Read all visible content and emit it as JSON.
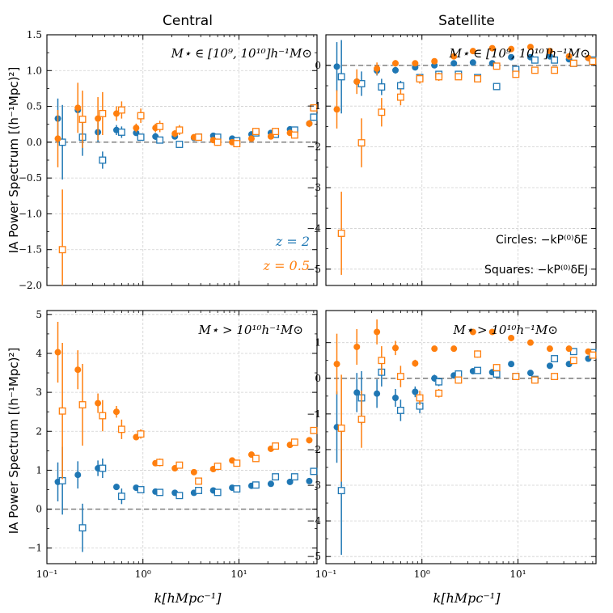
{
  "figure": {
    "col_titles": [
      "Central",
      "Satellite"
    ],
    "ylabel": "IA Power Spectrum [(h⁻¹Mpc)²]",
    "xlabel": "k[hMpc⁻¹]",
    "mass_label_low": "M⋆ ∈ [10⁹, 10¹⁰]h⁻¹M⊙",
    "mass_label_high": "M⋆ > 10¹⁰h⁻¹M⊙",
    "legend_z2": "z = 2",
    "legend_z05": "z = 0.5",
    "circles_note": "Circles: −kP⁽⁰⁾δE",
    "squares_note": "Squares: −kP⁽⁰⁾δEJ",
    "colors": {
      "z2": "#1f77b4",
      "z05": "#ff7f0e"
    }
  },
  "chart_data": [
    {
      "type": "scatter",
      "panel": "top-left",
      "title": "Central",
      "annotation": "M⋆ ∈ [10⁹, 10¹⁰]h⁻¹M⊙",
      "xscale": "log",
      "xlim": [
        0.1,
        65
      ],
      "ylim": [
        -2.0,
        1.5
      ],
      "yticks": [
        -2.0,
        -1.5,
        -1.0,
        -0.5,
        0.0,
        0.5,
        1.0,
        1.5
      ],
      "yticklabels": [
        "−2.0",
        "−1.5",
        "−1.0",
        "−0.5",
        "0.0",
        "0.5",
        "1.0",
        "1.5"
      ],
      "series": [
        {
          "name": "z=2 circles",
          "marker": "circle",
          "color": "#1f77b4",
          "x": [
            0.13,
            0.21,
            0.34,
            0.53,
            0.85,
            1.35,
            2.15,
            3.4,
            5.4,
            8.5,
            13.5,
            21.5,
            34,
            54
          ],
          "y": [
            0.33,
            0.45,
            0.14,
            0.17,
            0.13,
            0.08,
            0.08,
            0.06,
            0.09,
            0.05,
            0.11,
            0.13,
            0.18,
            0.26
          ],
          "err": [
            0.28,
            0.3,
            0.14,
            0.07,
            0.04,
            0.05,
            0.04,
            0.03,
            0.03,
            0.03,
            0.04,
            0.04,
            0.04,
            0.04
          ]
        },
        {
          "name": "z=2 squares",
          "marker": "square",
          "color": "#1f77b4",
          "x": [
            0.145,
            0.235,
            0.38,
            0.6,
            0.95,
            1.5,
            2.4,
            3.8,
            6.0,
            9.5,
            15,
            24,
            38,
            60
          ],
          "y": [
            0.0,
            0.07,
            -0.25,
            0.14,
            0.07,
            0.03,
            -0.03,
            0.07,
            0.07,
            0.02,
            0.13,
            0.11,
            0.17,
            0.35
          ],
          "err": [
            0.52,
            0.26,
            0.12,
            0.08,
            0.05,
            0.04,
            0.04,
            0.03,
            0.03,
            0.03,
            0.04,
            0.04,
            0.04,
            0.05
          ]
        },
        {
          "name": "z=0.5 circles",
          "marker": "circle",
          "color": "#ff7f0e",
          "x": [
            0.13,
            0.21,
            0.34,
            0.53,
            0.85,
            1.35,
            2.15,
            3.4,
            5.4,
            8.5,
            13.5,
            21.5,
            34,
            54
          ],
          "y": [
            0.05,
            0.48,
            0.33,
            0.4,
            0.2,
            0.2,
            0.12,
            0.07,
            0.03,
            0.0,
            0.05,
            0.08,
            0.13,
            0.26
          ],
          "err": [
            0.4,
            0.35,
            0.3,
            0.1,
            0.06,
            0.06,
            0.05,
            0.04,
            0.04,
            0.04,
            0.04,
            0.04,
            0.04,
            0.05
          ]
        },
        {
          "name": "z=0.5 squares",
          "marker": "square",
          "color": "#ff7f0e",
          "x": [
            0.145,
            0.235,
            0.38,
            0.6,
            0.95,
            1.5,
            2.4,
            3.8,
            6.0,
            9.5,
            15,
            24,
            38,
            60
          ],
          "y": [
            -1.5,
            0.32,
            0.4,
            0.45,
            0.37,
            0.22,
            0.17,
            0.07,
            0.0,
            -0.02,
            0.15,
            0.15,
            0.1,
            0.48
          ],
          "err": [
            0.84,
            0.4,
            0.3,
            0.12,
            0.1,
            0.08,
            0.07,
            0.05,
            0.05,
            0.05,
            0.05,
            0.05,
            0.05,
            0.05
          ]
        }
      ]
    },
    {
      "type": "scatter",
      "panel": "top-right",
      "title": "Satellite",
      "annotation": "M⋆ ∈ [10⁹, 10¹⁰]h⁻¹M⊙",
      "xscale": "log",
      "xlim": [
        0.1,
        65
      ],
      "ylim": [
        -5.4,
        0.75
      ],
      "yticks": [
        -5,
        -4,
        -3,
        -2,
        -1,
        0
      ],
      "yticklabels": [
        "−5",
        "−4",
        "−3",
        "−2",
        "−1",
        "0"
      ],
      "series": [
        {
          "name": "z=2 circles",
          "marker": "circle",
          "color": "#1f77b4",
          "x": [
            0.13,
            0.21,
            0.34,
            0.53,
            0.85,
            1.35,
            2.15,
            3.4,
            5.4,
            8.5,
            13.5,
            21.5,
            34,
            54
          ],
          "y": [
            -0.03,
            -0.4,
            -0.13,
            -0.12,
            -0.05,
            0.0,
            0.05,
            0.07,
            0.05,
            0.2,
            0.2,
            0.22,
            0.15,
            0.18
          ],
          "err": [
            0.6,
            0.3,
            0.12,
            0.08,
            0.05,
            0.05,
            0.04,
            0.04,
            0.04,
            0.04,
            0.04,
            0.04,
            0.04,
            0.04
          ]
        },
        {
          "name": "z=2 squares",
          "marker": "square",
          "color": "#1f77b4",
          "x": [
            0.145,
            0.235,
            0.38,
            0.6,
            0.95,
            1.5,
            2.4,
            3.8,
            6.0,
            9.5,
            15,
            24,
            38,
            60
          ],
          "y": [
            -0.28,
            -0.45,
            -0.53,
            -0.5,
            -0.3,
            -0.22,
            -0.22,
            -0.3,
            -0.52,
            -0.1,
            0.13,
            0.13,
            0.05,
            0.13
          ],
          "err": [
            0.9,
            0.3,
            0.2,
            0.12,
            0.08,
            0.06,
            0.06,
            0.05,
            0.05,
            0.05,
            0.05,
            0.05,
            0.05,
            0.05
          ]
        },
        {
          "name": "z=0.5 circles",
          "marker": "circle",
          "color": "#ff7f0e",
          "x": [
            0.13,
            0.21,
            0.34,
            0.53,
            0.85,
            1.35,
            2.15,
            3.4,
            5.4,
            8.5,
            13.5,
            21.5,
            34,
            54
          ],
          "y": [
            -1.08,
            -0.4,
            -0.08,
            0.05,
            0.05,
            0.1,
            0.22,
            0.35,
            0.42,
            0.4,
            0.45,
            0.35,
            0.22,
            0.18
          ],
          "err": [
            0.47,
            0.3,
            0.15,
            0.08,
            0.06,
            0.05,
            0.05,
            0.05,
            0.05,
            0.05,
            0.05,
            0.05,
            0.05,
            0.05
          ]
        },
        {
          "name": "z=0.5 squares",
          "marker": "square",
          "color": "#ff7f0e",
          "x": [
            0.145,
            0.235,
            0.38,
            0.6,
            0.95,
            1.5,
            2.4,
            3.8,
            6.0,
            9.5,
            15,
            24,
            38,
            60
          ],
          "y": [
            -4.12,
            -1.9,
            -1.15,
            -0.78,
            -0.33,
            -0.28,
            -0.28,
            -0.33,
            -0.02,
            -0.22,
            -0.12,
            -0.12,
            0.05,
            0.1
          ],
          "err": [
            1.02,
            0.6,
            0.35,
            0.2,
            0.12,
            0.1,
            0.08,
            0.07,
            0.06,
            0.06,
            0.06,
            0.06,
            0.06,
            0.06
          ]
        }
      ]
    },
    {
      "type": "scatter",
      "panel": "bottom-left",
      "annotation": "M⋆ > 10¹⁰h⁻¹M⊙",
      "xscale": "log",
      "xlim": [
        0.1,
        65
      ],
      "ylim": [
        -1.4,
        5.1
      ],
      "yticks": [
        -1,
        0,
        1,
        2,
        3,
        4,
        5
      ],
      "yticklabels": [
        "−1",
        "0",
        "1",
        "2",
        "3",
        "4",
        "5"
      ],
      "series": [
        {
          "name": "z=2 circles",
          "marker": "circle",
          "color": "#1f77b4",
          "x": [
            0.13,
            0.21,
            0.34,
            0.53,
            0.85,
            1.35,
            2.15,
            3.4,
            5.4,
            8.5,
            13.5,
            21.5,
            34,
            54
          ],
          "y": [
            0.7,
            0.88,
            1.05,
            0.57,
            0.55,
            0.45,
            0.42,
            0.42,
            0.48,
            0.55,
            0.6,
            0.65,
            0.7,
            0.72
          ],
          "err": [
            0.5,
            0.35,
            0.2,
            0.08,
            0.06,
            0.05,
            0.05,
            0.05,
            0.05,
            0.05,
            0.05,
            0.05,
            0.05,
            0.05
          ]
        },
        {
          "name": "z=2 squares",
          "marker": "square",
          "color": "#1f77b4",
          "x": [
            0.145,
            0.235,
            0.38,
            0.6,
            0.95,
            1.5,
            2.4,
            3.8,
            6.0,
            9.5,
            15,
            24,
            38,
            60
          ],
          "y": [
            0.73,
            -0.48,
            1.05,
            0.33,
            0.5,
            0.43,
            0.35,
            0.48,
            0.43,
            0.52,
            0.62,
            0.83,
            0.83,
            0.97
          ],
          "err": [
            0.87,
            0.62,
            0.25,
            0.2,
            0.08,
            0.06,
            0.06,
            0.05,
            0.05,
            0.05,
            0.05,
            0.05,
            0.05,
            0.05
          ]
        },
        {
          "name": "z=0.5 circles",
          "marker": "circle",
          "color": "#ff7f0e",
          "x": [
            0.13,
            0.21,
            0.34,
            0.53,
            0.85,
            1.35,
            2.15,
            3.4,
            5.4,
            8.5,
            13.5,
            21.5,
            34,
            54
          ],
          "y": [
            4.03,
            3.58,
            2.72,
            2.5,
            1.85,
            1.18,
            1.05,
            0.95,
            1.03,
            1.25,
            1.4,
            1.55,
            1.65,
            1.77
          ],
          "err": [
            0.78,
            0.5,
            0.25,
            0.15,
            0.08,
            0.07,
            0.06,
            0.06,
            0.06,
            0.06,
            0.06,
            0.06,
            0.06,
            0.06
          ]
        },
        {
          "name": "z=0.5 squares",
          "marker": "square",
          "color": "#ff7f0e",
          "x": [
            0.145,
            0.235,
            0.38,
            0.6,
            0.95,
            1.5,
            2.4,
            3.8,
            6.0,
            9.5,
            15,
            24,
            38,
            60
          ],
          "y": [
            2.52,
            2.68,
            2.4,
            2.05,
            1.93,
            1.2,
            1.13,
            0.72,
            1.1,
            1.18,
            1.3,
            1.62,
            1.72,
            2.02
          ],
          "err": [
            1.75,
            1.05,
            0.4,
            0.25,
            0.12,
            0.1,
            0.08,
            0.07,
            0.07,
            0.07,
            0.07,
            0.07,
            0.07,
            0.07
          ]
        }
      ]
    },
    {
      "type": "scatter",
      "panel": "bottom-right",
      "annotation": "M⋆ > 10¹⁰h⁻¹M⊙",
      "xscale": "log",
      "xlim": [
        0.1,
        65
      ],
      "ylim": [
        -5.2,
        1.9
      ],
      "yticks": [
        -5,
        -4,
        -3,
        -2,
        -1,
        0,
        1
      ],
      "yticklabels": [
        "−5",
        "−4",
        "−3",
        "−2",
        "−1",
        "0",
        "1"
      ],
      "series": [
        {
          "name": "z=2 circles",
          "marker": "circle",
          "color": "#1f77b4",
          "x": [
            0.13,
            0.21,
            0.34,
            0.53,
            0.85,
            1.35,
            2.15,
            3.4,
            5.4,
            8.5,
            13.5,
            21.5,
            34,
            54
          ],
          "y": [
            -1.37,
            -0.4,
            -0.43,
            -0.55,
            -0.38,
            0.0,
            0.08,
            0.2,
            0.17,
            0.4,
            0.15,
            0.35,
            0.4,
            0.55
          ],
          "err": [
            1.0,
            0.55,
            0.4,
            0.25,
            0.15,
            0.1,
            0.08,
            0.06,
            0.06,
            0.06,
            0.06,
            0.06,
            0.06,
            0.06
          ]
        },
        {
          "name": "z=2 squares",
          "marker": "square",
          "color": "#1f77b4",
          "x": [
            0.145,
            0.235,
            0.38,
            0.6,
            0.95,
            1.5,
            2.4,
            3.8,
            6.0,
            9.5,
            15,
            24,
            38,
            60
          ],
          "y": [
            -3.15,
            -0.55,
            0.17,
            -0.9,
            -0.78,
            -0.1,
            0.12,
            0.22,
            0.12,
            0.05,
            -0.03,
            0.55,
            0.75,
            0.72
          ],
          "err": [
            1.8,
            0.75,
            0.4,
            0.3,
            0.2,
            0.12,
            0.1,
            0.08,
            0.08,
            0.08,
            0.08,
            0.08,
            0.08,
            0.08
          ]
        },
        {
          "name": "z=0.5 circles",
          "marker": "circle",
          "color": "#ff7f0e",
          "x": [
            0.13,
            0.21,
            0.34,
            0.53,
            0.85,
            1.35,
            2.15,
            3.4,
            5.4,
            8.5,
            13.5,
            21.5,
            34,
            54
          ],
          "y": [
            0.4,
            0.88,
            1.3,
            0.85,
            0.42,
            0.83,
            0.83,
            1.3,
            1.3,
            1.13,
            1.0,
            0.83,
            0.83,
            0.75
          ],
          "err": [
            0.85,
            0.5,
            0.35,
            0.2,
            0.1,
            0.08,
            0.08,
            0.08,
            0.08,
            0.08,
            0.08,
            0.08,
            0.08,
            0.08
          ]
        },
        {
          "name": "z=0.5 squares",
          "marker": "square",
          "color": "#ff7f0e",
          "x": [
            0.145,
            0.235,
            0.38,
            0.6,
            0.95,
            1.5,
            2.4,
            3.8,
            6.0,
            9.5,
            15,
            24,
            38,
            60
          ],
          "y": [
            -1.4,
            -1.15,
            0.5,
            0.05,
            -0.55,
            -0.42,
            -0.05,
            0.68,
            0.3,
            0.05,
            -0.05,
            0.05,
            0.5,
            0.65
          ],
          "err": [
            1.5,
            0.8,
            0.4,
            0.3,
            0.2,
            0.12,
            0.1,
            0.1,
            0.1,
            0.1,
            0.1,
            0.1,
            0.1,
            0.1
          ]
        }
      ]
    }
  ]
}
